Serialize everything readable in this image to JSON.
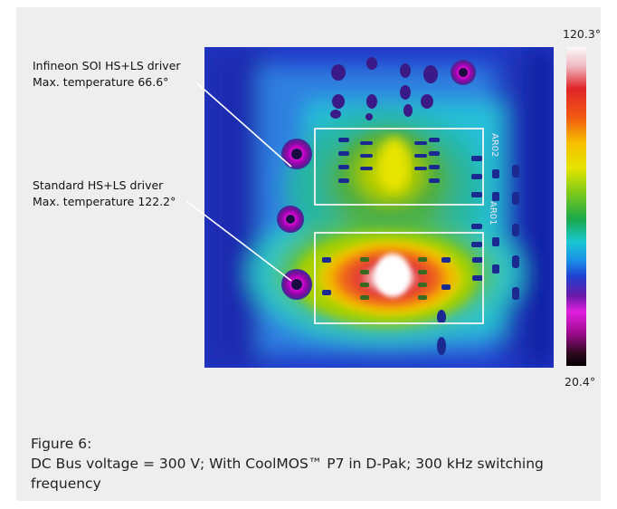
{
  "scale": {
    "max_label": "120.3°",
    "min_label": "20.4°"
  },
  "annotations": [
    {
      "line1": "Infineon SOI HS+LS driver",
      "line2": "Max. temperature 66.6°"
    },
    {
      "line1": "Standard HS+LS driver",
      "line2": "Max. temperature 122.2°"
    }
  ],
  "board_labels": {
    "box1": "AR02",
    "box2": "AR01"
  },
  "caption": {
    "line1": "Figure 6:",
    "line2": "DC Bus voltage = 300 V; With CoolMOS™ P7 in D-Pak; 300 kHz switching frequency"
  }
}
